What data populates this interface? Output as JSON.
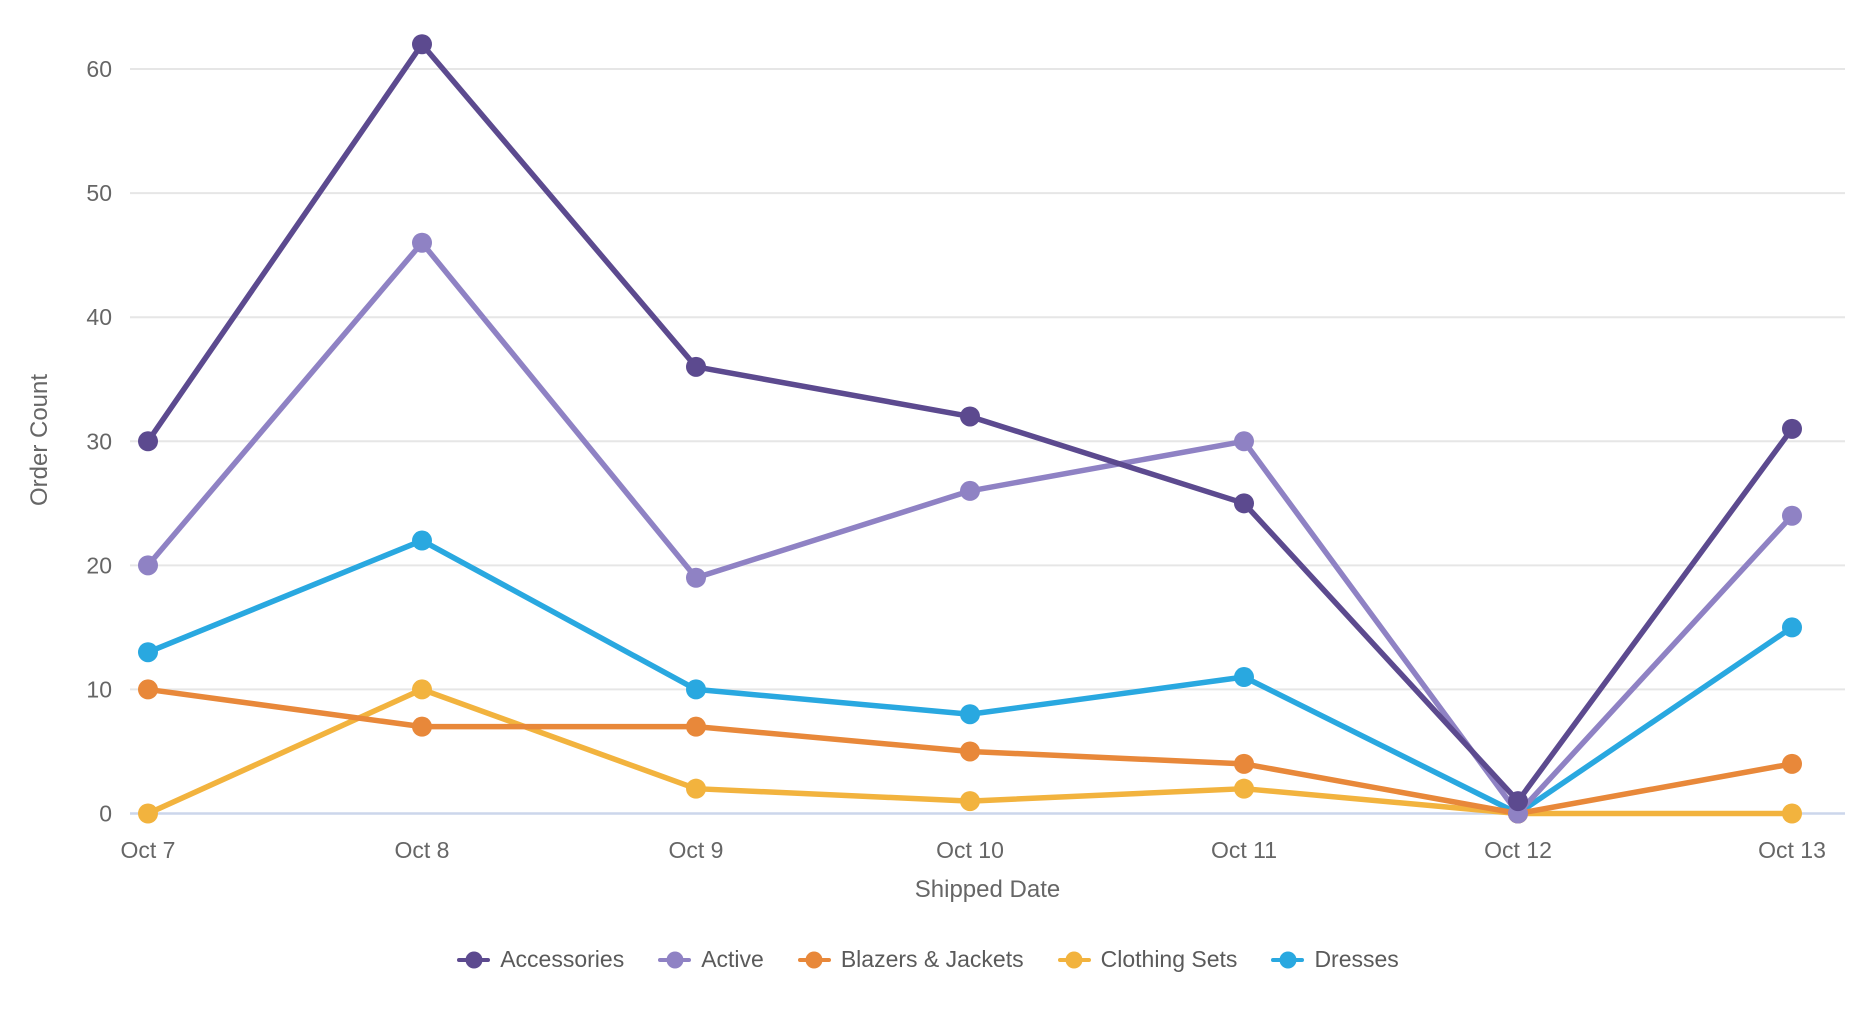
{
  "chart_data": {
    "type": "line",
    "title": "",
    "xlabel": "Shipped Date",
    "ylabel": "Order Count",
    "categories": [
      "Oct 7",
      "Oct 8",
      "Oct 9",
      "Oct 10",
      "Oct 11",
      "Oct 12",
      "Oct 13"
    ],
    "yticks": [
      0,
      10,
      20,
      30,
      40,
      50,
      60
    ],
    "ylim": [
      0,
      65
    ],
    "grid": true,
    "legend_position": "bottom",
    "series": [
      {
        "name": "Accessories",
        "color": "#5C4A8F",
        "values": [
          30,
          62,
          36,
          32,
          25,
          1,
          31
        ]
      },
      {
        "name": "Active",
        "color": "#8F82C4",
        "values": [
          20,
          46,
          19,
          26,
          30,
          0,
          24
        ]
      },
      {
        "name": "Blazers & Jackets",
        "color": "#E8883A",
        "values": [
          10,
          7,
          7,
          5,
          4,
          0,
          4
        ]
      },
      {
        "name": "Clothing Sets",
        "color": "#F2B33E",
        "values": [
          0,
          10,
          2,
          1,
          2,
          0,
          0
        ]
      },
      {
        "name": "Dresses",
        "color": "#29A8E0",
        "values": [
          13,
          22,
          10,
          8,
          11,
          0,
          15
        ]
      }
    ]
  },
  "colors": {
    "gridline": "#E6E6E6",
    "axis_line": "#CCD6EB",
    "tick_label": "#666666",
    "axis_title": "#666666",
    "legend_label": "#5A5A5A"
  }
}
